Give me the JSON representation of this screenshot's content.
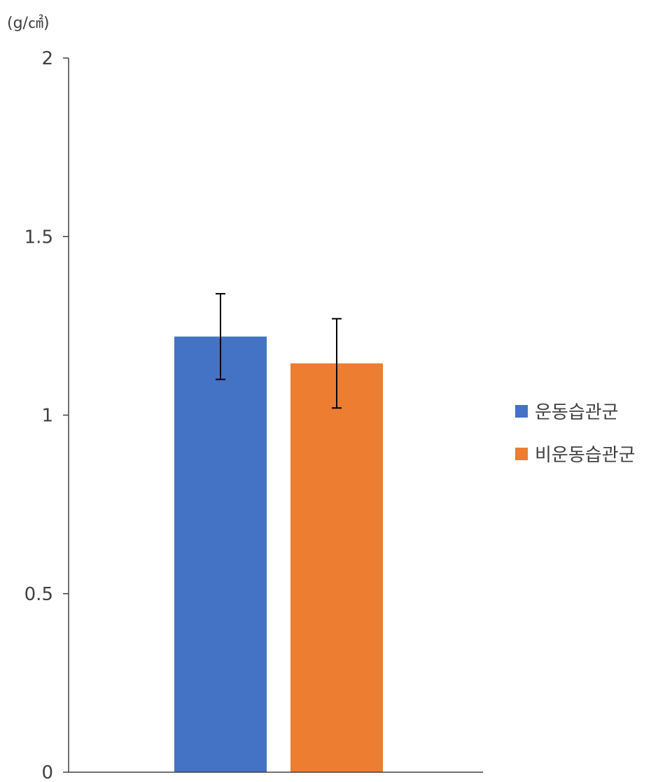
{
  "chart_data": {
    "type": "bar",
    "title": "",
    "xlabel": "",
    "ylabel": "(g/㎠)",
    "ylim": [
      0,
      2
    ],
    "yticks": [
      0,
      0.5,
      1,
      1.5,
      2
    ],
    "ytick_labels": [
      "0",
      "0.5",
      "1",
      "1.5",
      "2"
    ],
    "categories": [
      ""
    ],
    "grid": false,
    "legend_position": "right",
    "series": [
      {
        "name": "운동습관군",
        "values": [
          1.22
        ],
        "error": [
          0.12
        ],
        "color": "#4472C4"
      },
      {
        "name": "비운동습관군",
        "values": [
          1.145
        ],
        "error": [
          0.125
        ],
        "color": "#ED7D31"
      }
    ]
  }
}
